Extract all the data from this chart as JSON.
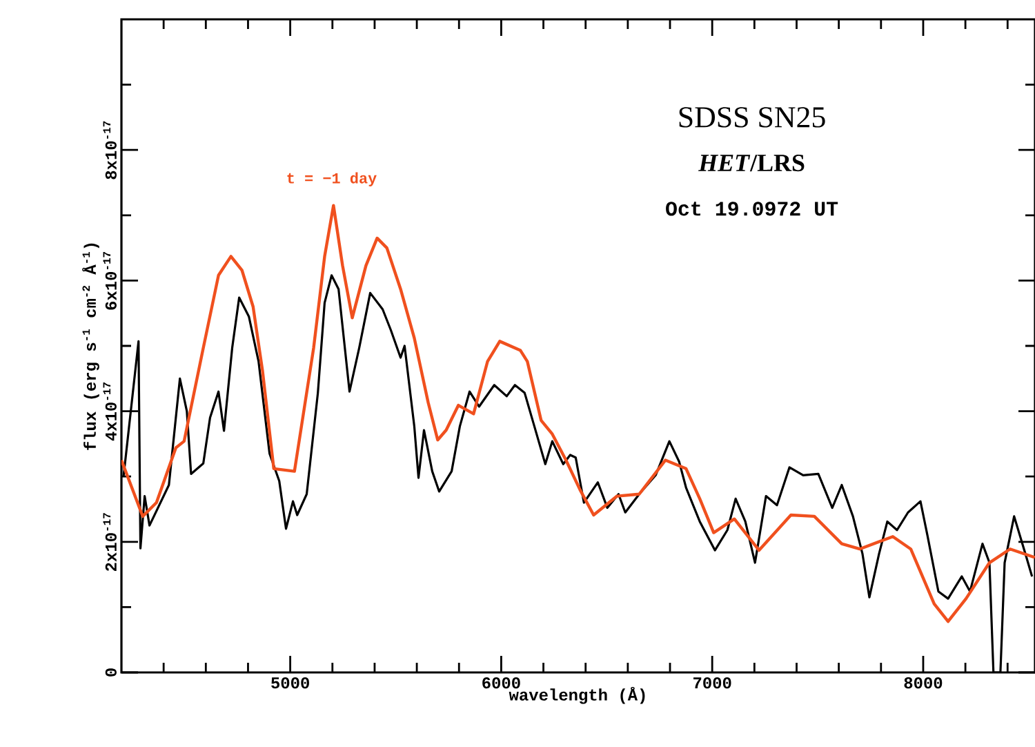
{
  "chart_data": {
    "type": "line",
    "xlabel": "wavelength (Å)",
    "ylabel": "flux (erg s$^{-1}$ cm$^{-2}$ Å$^{-1}$)",
    "annotations": [
      "SDSS SN25",
      "*HET*/LRS",
      "Oct 19.0972 UT"
    ],
    "xlim": [
      4200,
      8530
    ],
    "ylim": [
      0,
      1e-16
    ],
    "xticks": [
      {
        "value": 4400,
        "label": null
      },
      {
        "value": 4600,
        "label": null
      },
      {
        "value": 4800,
        "label": null
      },
      5000,
      {
        "value": 5200,
        "label": null
      },
      {
        "value": 5400,
        "label": null
      },
      {
        "value": 5600,
        "label": null
      },
      {
        "value": 5800,
        "label": null
      },
      6000,
      {
        "value": 6200,
        "label": null
      },
      {
        "value": 6400,
        "label": null
      },
      {
        "value": 6600,
        "label": null
      },
      {
        "value": 6800,
        "label": null
      },
      7000,
      {
        "value": 7200,
        "label": null
      },
      {
        "value": 7400,
        "label": null
      },
      {
        "value": 7600,
        "label": null
      },
      {
        "value": 7800,
        "label": null
      },
      8000,
      {
        "value": 8200,
        "label": null
      },
      {
        "value": 8400,
        "label": null
      }
    ],
    "yticks": [
      0,
      {
        "value": 1e-17,
        "label": null
      },
      {
        "value": 2e-17,
        "label": "2x10$^{-17}$"
      },
      {
        "value": 3e-17,
        "label": null
      },
      {
        "value": 4e-17,
        "label": "4x10$^{-17}$"
      },
      {
        "value": 5e-17,
        "label": null
      },
      {
        "value": 6e-17,
        "label": "6x10$^{-17}$"
      },
      {
        "value": 7e-17,
        "label": null
      },
      {
        "value": 8e-17,
        "label": "8x10$^{-17}$"
      },
      {
        "value": 9e-17,
        "label": null
      }
    ],
    "marker": "none",
    "line_style": "solid",
    "series": [
      {
        "color": "#000000",
        "x": [
          4210,
          4281,
          4290,
          4310,
          4333,
          4425,
          4477,
          4510,
          4530,
          4588,
          4620,
          4660,
          4686,
          4725,
          4758,
          4804,
          4850,
          4902,
          4948,
          4980,
          5013,
          5033,
          5078,
          5131,
          5163,
          5196,
          5229,
          5281,
          5327,
          5379,
          5438,
          5477,
          5523,
          5542,
          5588,
          5608,
          5634,
          5673,
          5706,
          5765,
          5804,
          5850,
          5895,
          5967,
          6026,
          6065,
          6111,
          6157,
          6209,
          6242,
          6294,
          6327,
          6353,
          6392,
          6458,
          6503,
          6556,
          6588,
          6654,
          6732,
          6797,
          6843,
          6876,
          6941,
          7013,
          7072,
          7111,
          7157,
          7203,
          7255,
          7307,
          7366,
          7431,
          7503,
          7569,
          7614,
          7667,
          7712,
          7745,
          7791,
          7830,
          7876,
          7928,
          7987,
          8020,
          8072,
          8118,
          8183,
          8222,
          8281,
          8314,
          8333,
          8366,
          8386,
          8431,
          8484,
          8516
        ],
        "values": [
          3e-17,
          5.07e-17,
          1.9e-17,
          2.7e-17,
          2.25e-17,
          2.87e-17,
          4.5e-17,
          4e-17,
          3.04e-17,
          3.2e-17,
          3.9e-17,
          4.3e-17,
          3.7e-17,
          4.97e-17,
          5.74e-17,
          5.45e-17,
          4.76e-17,
          3.35e-17,
          2.93e-17,
          2.2e-17,
          2.62e-17,
          2.41e-17,
          2.73e-17,
          4.28e-17,
          5.66e-17,
          6.08e-17,
          5.87e-17,
          4.3e-17,
          4.97e-17,
          5.81e-17,
          5.56e-17,
          5.24e-17,
          4.82e-17,
          5e-17,
          3.77e-17,
          2.98e-17,
          3.71e-17,
          3.08e-17,
          2.77e-17,
          3.08e-17,
          3.77e-17,
          4.3e-17,
          4.07e-17,
          4.4e-17,
          4.23e-17,
          4.4e-17,
          4.28e-17,
          3.77e-17,
          3.19e-17,
          3.54e-17,
          3.19e-17,
          3.33e-17,
          3.29e-17,
          2.6e-17,
          2.91e-17,
          2.52e-17,
          2.73e-17,
          2.45e-17,
          2.73e-17,
          3.02e-17,
          3.54e-17,
          3.23e-17,
          2.83e-17,
          2.31e-17,
          1.87e-17,
          2.18e-17,
          2.66e-17,
          2.31e-17,
          1.68e-17,
          2.7e-17,
          2.56e-17,
          3.14e-17,
          3.02e-17,
          3.04e-17,
          2.52e-17,
          2.87e-17,
          2.39e-17,
          1.82e-17,
          1.15e-17,
          1.82e-17,
          2.31e-17,
          2.18e-17,
          2.45e-17,
          2.62e-17,
          2.1e-17,
          1.24e-17,
          1.13e-17,
          1.47e-17,
          1.24e-17,
          1.97e-17,
          1.68e-17,
          0,
          0,
          1.68e-17,
          2.39e-17,
          1.82e-17,
          1.47e-17
        ]
      },
      {
        "name": "t = −1 day",
        "color": "#f0501e",
        "x": [
          4200,
          4301,
          4366,
          4458,
          4497,
          4588,
          4660,
          4719,
          4771,
          4824,
          4869,
          4922,
          5020,
          5111,
          5163,
          5205,
          5248,
          5294,
          5359,
          5412,
          5458,
          5523,
          5588,
          5654,
          5699,
          5739,
          5797,
          5869,
          5935,
          5993,
          6091,
          6124,
          6189,
          6242,
          6307,
          6373,
          6438,
          6549,
          6654,
          6778,
          6876,
          6941,
          7007,
          7105,
          7222,
          7373,
          7484,
          7614,
          7699,
          7856,
          7941,
          8052,
          8118,
          8203,
          8314,
          8412,
          8529
        ],
        "values": [
          3.25e-17,
          2.39e-17,
          2.6e-17,
          3.44e-17,
          3.54e-17,
          4.97e-17,
          6.08e-17,
          6.37e-17,
          6.16e-17,
          5.6e-17,
          4.61e-17,
          3.12e-17,
          3.08e-17,
          4.97e-17,
          6.37e-17,
          7.15e-17,
          6.23e-17,
          5.43e-17,
          6.23e-17,
          6.65e-17,
          6.5e-17,
          5.87e-17,
          5.12e-17,
          4.13e-17,
          3.56e-17,
          3.71e-17,
          4.09e-17,
          3.96e-17,
          4.76e-17,
          5.07e-17,
          4.93e-17,
          4.76e-17,
          3.86e-17,
          3.65e-17,
          3.25e-17,
          2.8e-17,
          2.41e-17,
          2.7e-17,
          2.73e-17,
          3.25e-17,
          3.12e-17,
          2.66e-17,
          2.14e-17,
          2.35e-17,
          1.87e-17,
          2.41e-17,
          2.39e-17,
          1.97e-17,
          1.89e-17,
          2.08e-17,
          1.89e-17,
          1.05e-17,
          7.8e-18,
          1.13e-17,
          1.68e-17,
          1.89e-17,
          1.76e-17
        ]
      }
    ]
  }
}
